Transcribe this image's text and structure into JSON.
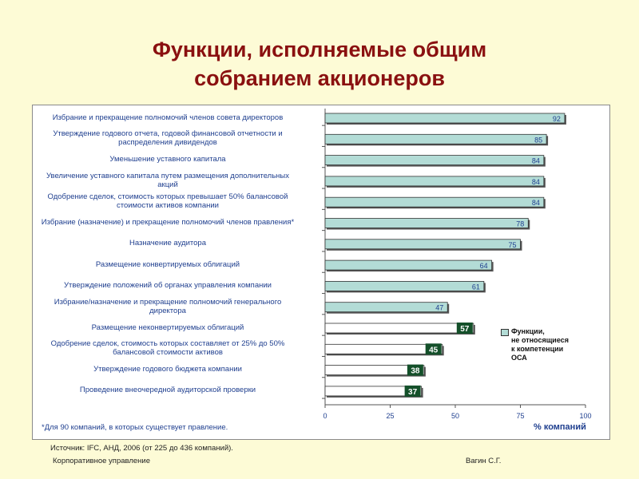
{
  "slide": {
    "title_line1": "Функции, исполняемые общим",
    "title_line2": "собранием акционеров",
    "source": "Источник: IFC, АНД, 2006 (от 225 до 436 компаний).",
    "footer_left": "Корпоративное управление",
    "footer_right": "Вагин С.Г."
  },
  "colors": {
    "bar_fill": "#b3dcd6",
    "highlight_label_bg": "#14502a",
    "title": "#8a1010",
    "labels": "#1f3f8f"
  },
  "chart_data": {
    "type": "bar",
    "orientation": "horizontal",
    "categories": [
      "Избрание и прекращение полномочий членов совета директоров",
      "Утверждение годового отчета, годовой финансовой отчетности и распределения дивидендов",
      "Уменьшение уставного капитала",
      "Увеличение уставного капитала путем размещения дополнительных акций",
      "Одобрение сделок, стоимость которых превышает 50% балансовой стоимости активов компании",
      "Избрание (назначение) и прекращение полномочий членов правления*",
      "Назначение аудитора",
      "Размещение конвертируемых облигаций",
      "Утверждение положений об органах управления компании",
      "Избрание/назначение и прекращение полномочий генерального директора",
      "Размещение неконвертируемых облигаций",
      "Одобрение сделок, стоимость которых составляет от 25% до 50% балансовой стоимости активов",
      "Утверждение годового бюджета компании",
      "Проведение внеочередной аудиторской проверки"
    ],
    "values": [
      92,
      85,
      84,
      84,
      84,
      78,
      75,
      64,
      61,
      47,
      57,
      45,
      38,
      37
    ],
    "value_labels": [
      "92",
      "85",
      "84",
      "84",
      "84",
      "78",
      "75",
      "64",
      "61",
      "47",
      "57",
      "45",
      "38",
      "37"
    ],
    "not_in_competence": [
      false,
      false,
      false,
      false,
      false,
      false,
      false,
      false,
      false,
      false,
      true,
      true,
      true,
      true
    ],
    "xlim": [
      0,
      100
    ],
    "xticks": [
      "0",
      "25",
      "50",
      "75",
      "100"
    ],
    "xlabel": "% компаний",
    "legend": {
      "lines": [
        "Функции,",
        "не относящиеся",
        "к компетенции",
        "ОСА"
      ],
      "placement": "right"
    },
    "footnote": "*Для 90 компаний, в которых существует правление.",
    "grid": false
  }
}
